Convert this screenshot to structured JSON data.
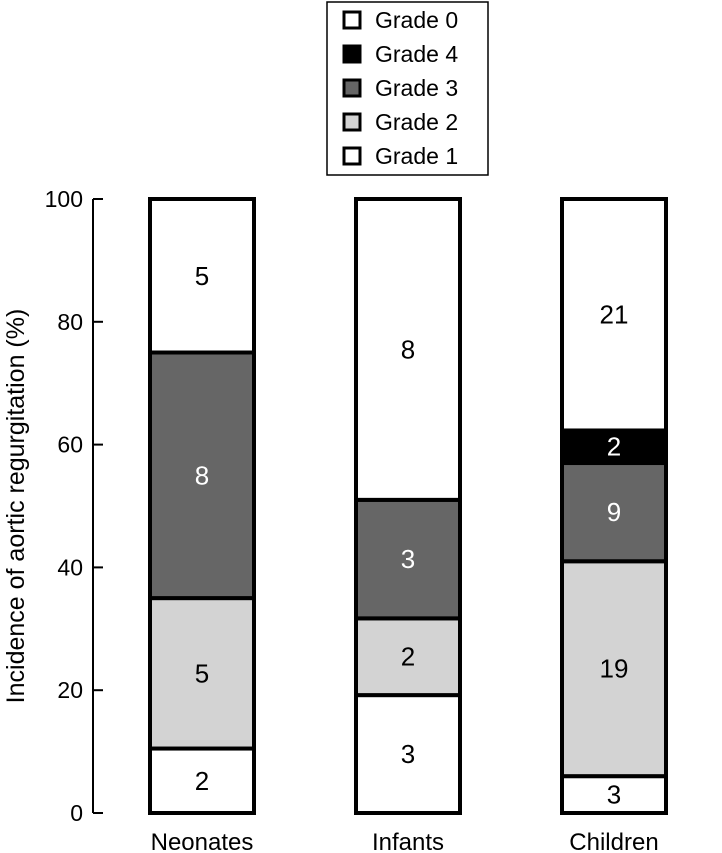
{
  "chart_data": {
    "type": "bar",
    "stacked": true,
    "ylabel": "Incidence of aortic regurgitation (%)",
    "xlabel": "",
    "ylim": [
      0,
      100
    ],
    "yticks": [
      0,
      20,
      40,
      60,
      80,
      100
    ],
    "categories": [
      "Neonates",
      "Infants",
      "Children"
    ],
    "legend": {
      "placement": "top-center",
      "entries": [
        "Grade 0",
        "Grade 4",
        "Grade 3",
        "Grade 2",
        "Grade 1"
      ]
    },
    "series": [
      {
        "name": "Grade 1",
        "color": "#ffffff",
        "label_color": "#000000",
        "percent": [
          10.5,
          19.2,
          6.0
        ],
        "counts": [
          "2",
          "3",
          "3"
        ]
      },
      {
        "name": "Grade 2",
        "color": "#d3d3d3",
        "label_color": "#000000",
        "percent": [
          24.5,
          12.5,
          35.0
        ],
        "counts": [
          "5",
          "2",
          "19"
        ]
      },
      {
        "name": "Grade 3",
        "color": "#666666",
        "label_color": "#ffffff",
        "percent": [
          40.0,
          19.3,
          16.0
        ],
        "counts": [
          "8",
          "3",
          "9"
        ]
      },
      {
        "name": "Grade 4",
        "color": "#000000",
        "label_color": "#ffffff",
        "percent": [
          0,
          0,
          5.3
        ],
        "counts": [
          "",
          "",
          "2"
        ]
      },
      {
        "name": "Grade 0",
        "color": "#ffffff",
        "label_color": "#000000",
        "percent": [
          25.0,
          49.0,
          37.7
        ],
        "counts": [
          "5",
          "8",
          "21"
        ]
      }
    ]
  }
}
